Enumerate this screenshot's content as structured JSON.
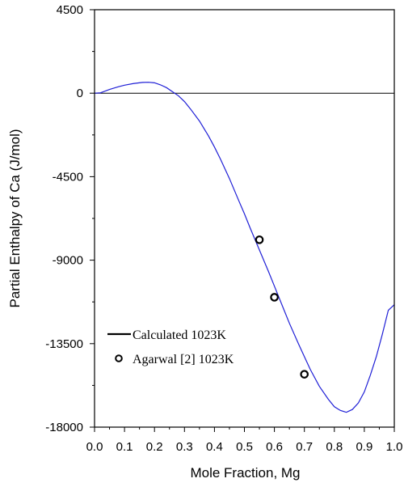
{
  "chart_data": {
    "type": "line",
    "xlabel": "Mole Fraction, Mg",
    "ylabel": "Partial Enthalpy of Ca (J/mol)",
    "xlim": [
      0.0,
      1.0
    ],
    "ylim": [
      -18000,
      4500
    ],
    "x_ticks": [
      "0.0",
      "0.1",
      "0.2",
      "0.3",
      "0.4",
      "0.5",
      "0.6",
      "0.7",
      "0.8",
      "0.9",
      "1.0"
    ],
    "y_ticks": [
      "4500",
      "0",
      "-4500",
      "-9000",
      "-13500",
      "-18000"
    ],
    "grid": false,
    "zero_line": true,
    "legend_position": "lower-left",
    "series": [
      {
        "name": "Calculated  1023K",
        "kind": "line",
        "color": "#1f1fd6",
        "points": [
          [
            0.0,
            0
          ],
          [
            0.02,
            20
          ],
          [
            0.05,
            200
          ],
          [
            0.08,
            350
          ],
          [
            0.1,
            430
          ],
          [
            0.13,
            520
          ],
          [
            0.16,
            580
          ],
          [
            0.18,
            590
          ],
          [
            0.2,
            560
          ],
          [
            0.22,
            450
          ],
          [
            0.24,
            300
          ],
          [
            0.26,
            80
          ],
          [
            0.28,
            -140
          ],
          [
            0.3,
            -450
          ],
          [
            0.32,
            -850
          ],
          [
            0.35,
            -1500
          ],
          [
            0.38,
            -2300
          ],
          [
            0.4,
            -2900
          ],
          [
            0.42,
            -3550
          ],
          [
            0.45,
            -4600
          ],
          [
            0.48,
            -5750
          ],
          [
            0.5,
            -6500
          ],
          [
            0.52,
            -7300
          ],
          [
            0.55,
            -8450
          ],
          [
            0.58,
            -9600
          ],
          [
            0.6,
            -10400
          ],
          [
            0.63,
            -11600
          ],
          [
            0.65,
            -12400
          ],
          [
            0.68,
            -13500
          ],
          [
            0.7,
            -14200
          ],
          [
            0.72,
            -14900
          ],
          [
            0.75,
            -15800
          ],
          [
            0.78,
            -16500
          ],
          [
            0.8,
            -16900
          ],
          [
            0.82,
            -17100
          ],
          [
            0.84,
            -17200
          ],
          [
            0.86,
            -17050
          ],
          [
            0.88,
            -16700
          ],
          [
            0.9,
            -16100
          ],
          [
            0.92,
            -15200
          ],
          [
            0.94,
            -14200
          ],
          [
            0.96,
            -13000
          ],
          [
            0.98,
            -11700
          ],
          [
            1.0,
            -11400
          ]
        ]
      },
      {
        "name": "Agarwal [2] 1023K",
        "kind": "marker",
        "color": "#000000",
        "points": [
          [
            0.55,
            -7900
          ],
          [
            0.6,
            -11000
          ],
          [
            0.7,
            -15150
          ]
        ]
      }
    ]
  }
}
